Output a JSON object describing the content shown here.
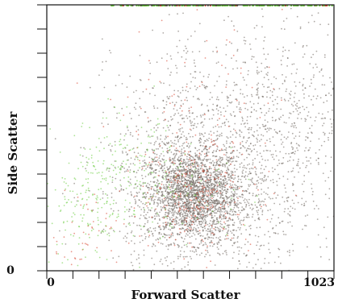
{
  "chart_data": {
    "type": "scatter",
    "title": "",
    "xlabel": "Forward Scatter",
    "ylabel": "Side Scatter",
    "xlim": [
      0,
      1023
    ],
    "ylim": [
      0,
      1023
    ],
    "x_tick_labels": [
      {
        "value": 0,
        "label": "0"
      },
      {
        "value": 1023,
        "label": "1023"
      }
    ],
    "y_tick_labels": [
      {
        "value": 0,
        "label": "0"
      }
    ],
    "y_minor_tick_values": [
      0,
      93,
      186,
      279,
      372,
      465,
      558,
      651,
      744,
      837,
      930,
      1023
    ],
    "x_minor_tick_values": [
      0,
      93,
      186,
      279,
      372,
      465,
      558,
      651,
      744,
      837,
      930,
      1023
    ],
    "grid": false,
    "legend": "none",
    "colors": {
      "dark_events": "#6e655c",
      "red_events": "#d9432e",
      "green_events": "#68cc3c",
      "axis": "#111111"
    },
    "series": [
      {
        "color": "#6e655c",
        "clusters": [
          {
            "center": [
              520,
              290
            ],
            "spread": [
              85,
              90
            ],
            "count": 2200
          },
          {
            "center": [
              560,
              330
            ],
            "spread": [
              180,
              200
            ],
            "count": 1100
          },
          {
            "center": [
              650,
              540
            ],
            "spread": [
              200,
              220
            ],
            "count": 600
          },
          {
            "center": [
              880,
              560
            ],
            "spread": [
              120,
              200
            ],
            "count": 350
          }
        ]
      },
      {
        "color": "#d9432e",
        "clusters": [
          {
            "center": [
              530,
              300
            ],
            "spread": [
              100,
              110
            ],
            "count": 260
          },
          {
            "center": [
              560,
              520
            ],
            "spread": [
              150,
              230
            ],
            "count": 110
          },
          {
            "center": [
              140,
              140
            ],
            "spread": [
              70,
              90
            ],
            "count": 50
          }
        ]
      },
      {
        "color": "#68cc3c",
        "clusters": [
          {
            "center": [
              250,
              380
            ],
            "spread": [
              110,
              100
            ],
            "count": 180
          },
          {
            "center": [
              140,
              200
            ],
            "spread": [
              80,
              90
            ],
            "count": 120
          },
          {
            "center": [
              480,
              320
            ],
            "spread": [
              120,
              100
            ],
            "count": 80
          }
        ]
      }
    ]
  }
}
